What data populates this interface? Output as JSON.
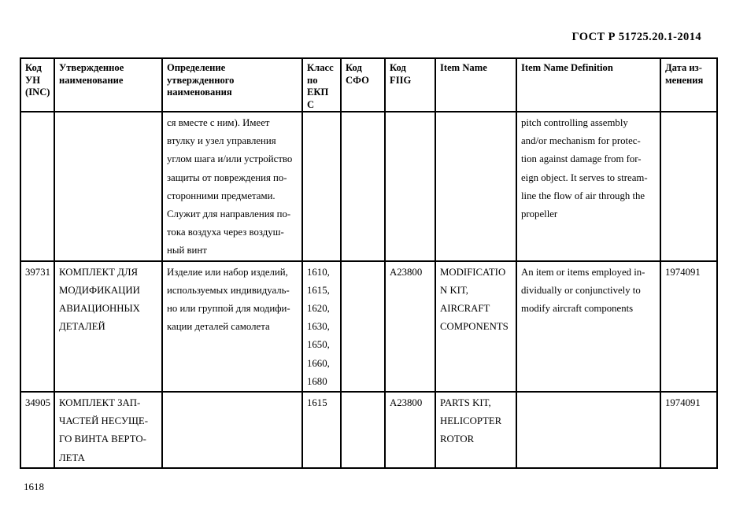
{
  "page": {
    "doc_title": "ГОСТ Р 51725.20.1-2014",
    "page_number": "1618"
  },
  "table": {
    "headers": [
      "Код\nУН\n(INC)",
      "Утвержденное\nнаименование",
      "Определение\nутвержденного\nнаименования",
      "Класс\nпо\nЕКП\nС",
      "Код\nСФО",
      "Код\nFIIG",
      "Item Name",
      "Item Name Definition",
      "Дата из-\nменения"
    ],
    "rows": [
      {
        "cells": [
          "",
          "",
          "ся вместе с ним). Имеет\nвтулку и узел управления\nуглом шага и/или устройство\nзащиты от повреждения по-\nсторонними предметами.\nСлужит для направления по-\nтока воздуха через воздуш-\nный винт",
          "",
          "",
          "",
          "",
          "pitch controlling assembly\nand/or mechanism for protec-\ntion against damage from for-\neign object. It serves to stream-\nline the flow of air through the\npropeller",
          ""
        ]
      },
      {
        "cells": [
          "39731",
          "КОМПЛЕКТ ДЛЯ\nМОДИФИКАЦИИ\nАВИАЦИОННЫХ\nДЕТАЛЕЙ",
          "Изделие или набор изделий,\nиспользуемых индивидуаль-\nно или группой для модифи-\nкации деталей самолета",
          "1610,\n1615,\n1620,\n1630,\n1650,\n1660,\n1680",
          "",
          "A23800",
          "MODIFICATIO\nN KIT,\nAIRCRAFT\nCOMPONENTS",
          "An item or items employed in-\ndividually or conjunctively to\nmodify aircraft components",
          "1974091"
        ]
      },
      {
        "cells": [
          "34905",
          "КОМПЛЕКТ ЗАП-\nЧАСТЕЙ НЕСУЩЕ-\nГО ВИНТА ВЕРТО-\nЛЕТА",
          "",
          "1615",
          "",
          "A23800",
          "PARTS KIT,\nHELICOPTER\nROTOR",
          "",
          "1974091"
        ]
      }
    ]
  }
}
